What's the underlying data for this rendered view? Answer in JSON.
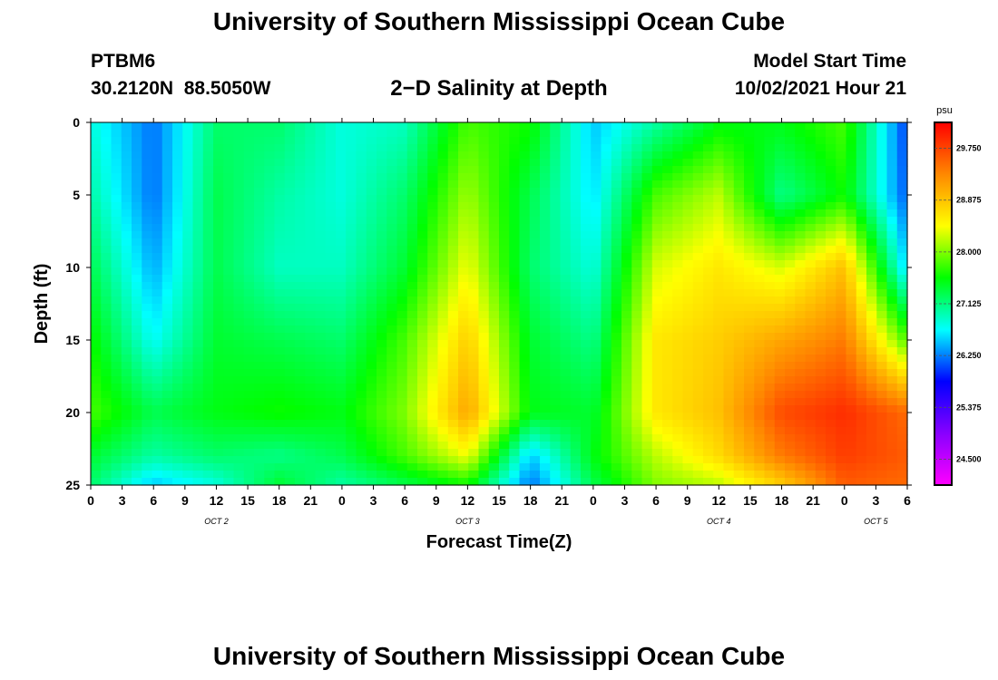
{
  "header": {
    "title": "University of Southern Mississippi Ocean Cube",
    "station_id": "PTBM6",
    "station_coords": "30.2120N  88.5050W",
    "plot_title": "2−D Salinity at Depth",
    "model_start_label": "Model Start Time",
    "model_start_value": "10/02/2021 Hour 21"
  },
  "footer": {
    "title": "University of Southern Mississippi Ocean Cube"
  },
  "chart_data": {
    "type": "heatmap",
    "xlabel": "Forecast Time(Z)",
    "ylabel": "Depth (ft)",
    "x_ticks": [
      "0",
      "3",
      "6",
      "9",
      "12",
      "15",
      "18",
      "21",
      "0",
      "3",
      "6",
      "9",
      "12",
      "15",
      "18",
      "21",
      "0",
      "3",
      "6",
      "9",
      "12",
      "15",
      "18",
      "21",
      "0",
      "3",
      "6"
    ],
    "x_day_labels": [
      {
        "label": "OCT 2",
        "tick_index": 4
      },
      {
        "label": "OCT 3",
        "tick_index": 12
      },
      {
        "label": "OCT 4",
        "tick_index": 20
      },
      {
        "label": "OCT 5",
        "tick_index": 25
      }
    ],
    "y_ticks": [
      0,
      5,
      10,
      15,
      20,
      25
    ],
    "ylim": [
      0,
      25
    ],
    "y_inverted": true,
    "colorbar": {
      "unit": "psu",
      "ticks": [
        "29.750",
        "28.875",
        "28.000",
        "27.125",
        "26.250",
        "25.375",
        "24.500"
      ],
      "colors": [
        "#ff00ff",
        "#8800ff",
        "#0000ff",
        "#00ffff",
        "#00ff00",
        "#ffff00",
        "#ff8800",
        "#ff0000"
      ]
    },
    "time_hours": [
      0,
      6,
      12,
      18,
      24,
      30,
      36,
      42,
      48,
      54,
      60,
      66,
      72,
      78
    ],
    "depths_ft": [
      0,
      5,
      10,
      15,
      20,
      23,
      25
    ],
    "salinity_psu": [
      [
        26.8,
        26.2,
        27.2,
        27.2,
        26.8,
        26.9,
        27.8,
        27.6,
        26.5,
        27.0,
        27.5,
        27.5,
        27.8,
        26.0
      ],
      [
        27.0,
        26.2,
        27.3,
        27.0,
        26.8,
        27.2,
        28.1,
        27.3,
        26.6,
        27.8,
        28.2,
        27.1,
        27.6,
        26.1
      ],
      [
        27.3,
        26.4,
        27.3,
        26.9,
        26.9,
        27.4,
        28.4,
        27.2,
        26.8,
        28.3,
        28.6,
        28.3,
        28.9,
        26.5
      ],
      [
        27.6,
        26.7,
        27.4,
        27.3,
        27.2,
        27.8,
        28.8,
        27.4,
        27.1,
        28.6,
        28.8,
        29.1,
        29.4,
        27.8
      ],
      [
        27.8,
        27.3,
        27.5,
        27.6,
        27.5,
        28.0,
        29.1,
        27.5,
        27.4,
        28.6,
        28.9,
        29.7,
        29.9,
        29.5
      ],
      [
        27.4,
        27.0,
        27.2,
        27.1,
        27.3,
        27.8,
        28.4,
        26.5,
        27.5,
        28.2,
        28.7,
        29.4,
        29.8,
        29.6
      ],
      [
        27.2,
        26.5,
        26.8,
        27.4,
        27.0,
        27.3,
        27.6,
        26.2,
        27.3,
        28.0,
        28.2,
        28.8,
        29.6,
        29.5
      ]
    ]
  }
}
